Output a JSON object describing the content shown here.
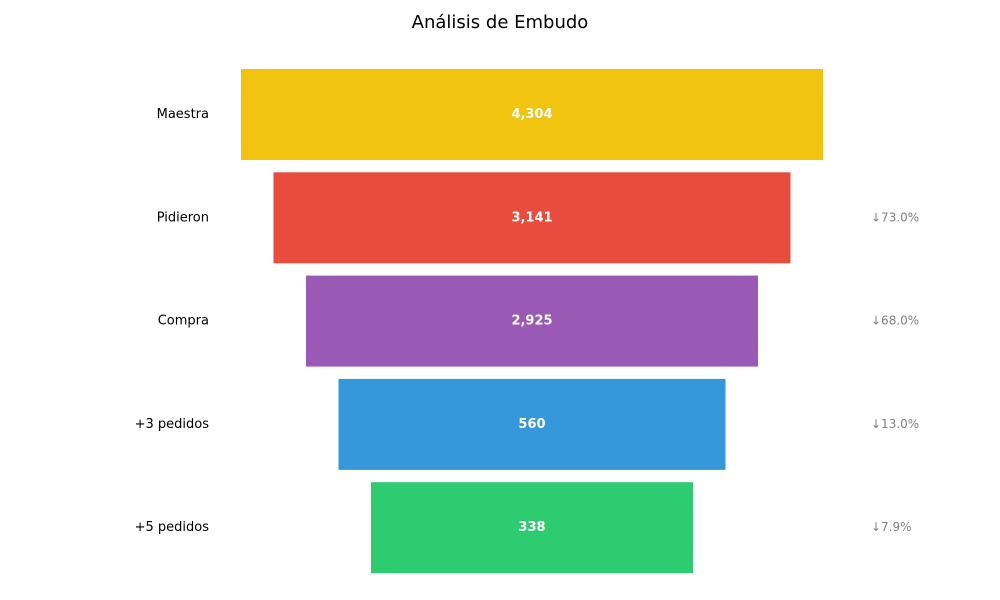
{
  "chart_data": {
    "type": "bar",
    "subtype": "funnel",
    "title": "Análisis de Embudo",
    "categories": [
      "Maestra",
      "Pidieron",
      "Compra",
      "+3 pedidos",
      "+5 pedidos"
    ],
    "values": [
      4304,
      3141,
      2925,
      560,
      338
    ],
    "value_labels": [
      "4,304",
      "3,141",
      "2,925",
      "560",
      "338"
    ],
    "conversion_labels": [
      "",
      "↓73.0%",
      "↓68.0%",
      "↓13.0%",
      "↓7.9%"
    ],
    "colors": [
      "#f1c40f",
      "#e74c3c",
      "#9b59b6",
      "#3498db",
      "#2ecc71"
    ],
    "xlabel": "",
    "ylabel": "",
    "grid": false,
    "legend": "none"
  }
}
